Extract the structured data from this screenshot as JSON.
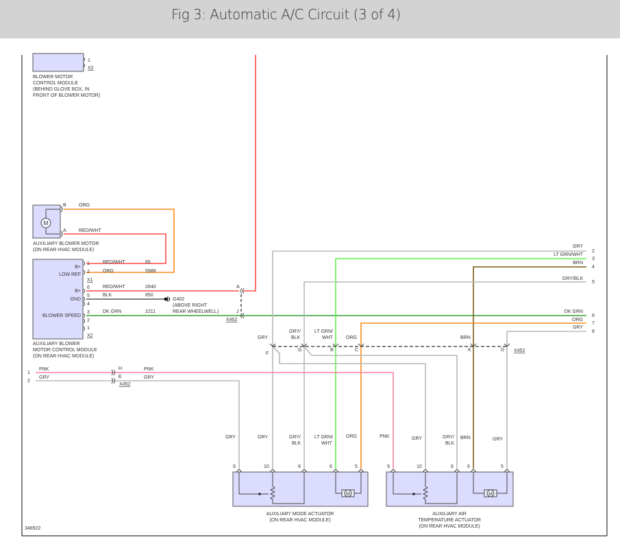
{
  "header": {
    "title": "Fig 3: Automatic A/C Circuit (3 of 4)"
  },
  "colors": {
    "box": "#dcdcff",
    "red": "#ff4a4a",
    "orange": "#ff8c1a",
    "dk_green": "#2e9e2e",
    "lt_green": "#5df048",
    "brown": "#7a5a10",
    "gray": "#b8b8b8",
    "pink": "#ff80a0",
    "header_bg": "#d3d3d3"
  },
  "blower_module": {
    "pin": "1",
    "connector": "X2",
    "name": [
      "BLOWER MOTOR",
      "CONTROL MODULE",
      "(BEHIND GLOVE BOX, IN",
      "FRONT OF BLOWER MOTOR)"
    ]
  },
  "aux_motor": {
    "pin_b": "B",
    "wire_b": "ORG",
    "pin_a": "A",
    "wire_a": "RED/WHT",
    "icon": "motor-icon",
    "motor_letter": "M",
    "name": [
      "AUXILIARY BLOWER MOTOR",
      "(ON REAR HVAC MODULE)"
    ]
  },
  "aux_module": {
    "inside": [
      "B+",
      "LOW REF",
      "B+",
      "GND",
      "BLOWER SPEED"
    ],
    "pins": [
      "1",
      "2",
      "X1",
      "6",
      "5",
      "4",
      "3",
      "2",
      "1",
      "X2"
    ],
    "wires": [
      {
        "color": "RED/WHT",
        "circuit": "65"
      },
      {
        "color": "ORG",
        "circuit": "5988"
      },
      {
        "color": "RED/WHT",
        "circuit": "2640"
      },
      {
        "color": "BLK",
        "circuit": "850"
      },
      {
        "color": "DK GRN",
        "circuit": "2211"
      }
    ],
    "name": [
      "AUXILIARY BLOWER",
      "MOTOR CONTROL MODULE",
      "(ON REAR HVAC MODULE)"
    ]
  },
  "ground": {
    "id": "G402",
    "location": [
      "(ABOVE RIGHT",
      "REAR WHEELWELL)"
    ]
  },
  "x452_upper": {
    "pin_a": "A",
    "pin_j": "J",
    "connector": "X452"
  },
  "right_wires": [
    {
      "color": "GRY",
      "pin": "2"
    },
    {
      "color": "LT GRN/WHT",
      "pin": "3"
    },
    {
      "color": "BRN",
      "pin": "4"
    },
    {
      "color": "GRY/BLK",
      "pin": "5"
    },
    {
      "color": "DK GRN",
      "pin": "6"
    },
    {
      "color": "ORG",
      "pin": "7"
    },
    {
      "color": "GRY",
      "pin": "8"
    }
  ],
  "x452_row": {
    "pins": [
      "F",
      "G",
      "B",
      "C",
      "K",
      "D"
    ],
    "connector": "X452",
    "wire_labels": [
      "GRY",
      "GRY/",
      "BLK",
      "LT GRN/",
      "WHT",
      "ORG",
      "BRN"
    ]
  },
  "left_inputs": [
    {
      "pin": "1",
      "color": "PNK",
      "conn_pin": "H",
      "color_after": "PNK"
    },
    {
      "pin": "2",
      "color": "GRY",
      "conn_pin": "E",
      "color_after": "GRY"
    }
  ],
  "x452_left": "X452",
  "mode_actuator": {
    "wire_labels": [
      "GRY",
      "GRY",
      "GRY/",
      "BLK",
      "LT GRN/",
      "WHT",
      "ORG"
    ],
    "pins": [
      "9",
      "10",
      "8",
      "6",
      "5"
    ],
    "name": [
      "AUXILIARY MODE ACTUATOR",
      "(ON REAR HVAC MODULE)"
    ]
  },
  "temp_actuator": {
    "wire_labels": [
      "PNK",
      "GRY",
      "GRY/",
      "BLK",
      "BRN",
      "GRY"
    ],
    "pins": [
      "9",
      "10",
      "8",
      "6",
      "5"
    ],
    "name": [
      "AUXILIARY AIR",
      "TEMPERATURE ACTUATOR",
      "(ON REAR HVAC MODULE)"
    ]
  },
  "figure_number": "348922"
}
